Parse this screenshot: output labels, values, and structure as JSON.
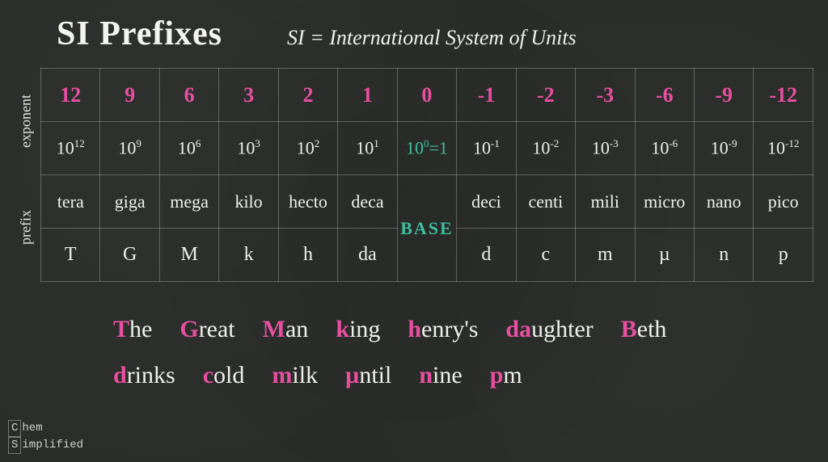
{
  "header": {
    "title": "SI Prefixes",
    "subtitle": "SI = International System of Units"
  },
  "side": {
    "exponent": "exponent",
    "prefix": "prefix"
  },
  "exponents": [
    "12",
    "9",
    "6",
    "3",
    "2",
    "1",
    "0",
    "-1",
    "-2",
    "-3",
    "-6",
    "-9",
    "-12"
  ],
  "powers_base": [
    "10",
    "10",
    "10",
    "10",
    "10",
    "10",
    "10",
    "10",
    "10",
    "10",
    "10",
    "10",
    "10"
  ],
  "powers_sup": [
    "12",
    "9",
    "6",
    "3",
    "2",
    "1",
    "0",
    "-1",
    "-2",
    "-3",
    "-6",
    "-9",
    "-12"
  ],
  "power_center_suffix": "=1",
  "prefixes": [
    "tera",
    "giga",
    "mega",
    "kilo",
    "hecto",
    "deca",
    "",
    "deci",
    "centi",
    "mili",
    "micro",
    "nano",
    "pico"
  ],
  "base_label": "BASE",
  "symbols": [
    "T",
    "G",
    "M",
    "k",
    "h",
    "da",
    "",
    "d",
    "c",
    "m",
    "µ",
    "n",
    "p"
  ],
  "mnemonic": {
    "row1": [
      {
        "hl": "T",
        "rest": "he"
      },
      {
        "hl": "G",
        "rest": "reat"
      },
      {
        "hl": "M",
        "rest": "an"
      },
      {
        "hl": "k",
        "rest": "ing"
      },
      {
        "hl": "h",
        "rest": "enry's"
      },
      {
        "hl": "da",
        "rest": "ughter"
      },
      {
        "hl": "B",
        "rest": "eth"
      }
    ],
    "row2": [
      {
        "hl": "d",
        "rest": "rinks"
      },
      {
        "hl": "c",
        "rest": "old"
      },
      {
        "hl": "m",
        "rest": "ilk"
      },
      {
        "hl": "µ",
        "rest": "ntil"
      },
      {
        "hl": "n",
        "rest": "ine"
      },
      {
        "hl": "p",
        "rest": "m"
      }
    ]
  },
  "colors": {
    "pink": "#e84fa0",
    "teal": "#3fbfa0",
    "chalk": "#f0f0ea",
    "bg": "#2a2d2a",
    "border": "rgba(200,200,200,0.35)"
  },
  "logo": {
    "line1_a": "C",
    "line1_b": "hem",
    "line2_a": "S",
    "line2_b": "implified"
  }
}
